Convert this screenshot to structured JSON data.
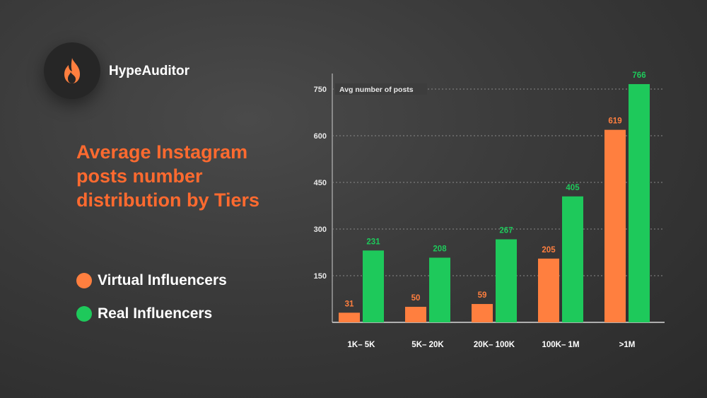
{
  "brand": {
    "name": "HypeAuditor",
    "icon": "flame-icon",
    "icon_color": "#ff7f3f"
  },
  "title": "Average Instagram posts number distribution by Tiers",
  "colors": {
    "title": "#ff6a2f",
    "virtual": "#ff7f3f",
    "real": "#1ec95b"
  },
  "legend": [
    {
      "label": "Virtual Influencers",
      "color": "#ff7f3f"
    },
    {
      "label": "Real Influencers",
      "color": "#1ec95b"
    }
  ],
  "chart_data": {
    "type": "bar",
    "title": "Average Instagram posts number distribution by Tiers",
    "ylabel": "Avg number of posts",
    "xlabel": "",
    "categories": [
      "1K– 5K",
      "5K– 20K",
      "20K– 100K",
      "100K– 1M",
      ">1M"
    ],
    "series": [
      {
        "name": "Virtual Influencers",
        "color": "#ff7f3f",
        "values": [
          31,
          50,
          59,
          205,
          619
        ]
      },
      {
        "name": "Real Influencers",
        "color": "#1ec95b",
        "values": [
          231,
          208,
          267,
          405,
          766
        ]
      }
    ],
    "ylim": [
      0,
      800
    ],
    "yticks": [
      150,
      300,
      450,
      600,
      750
    ],
    "grid": true,
    "grid_style": "dotted",
    "legend_position": "left"
  }
}
